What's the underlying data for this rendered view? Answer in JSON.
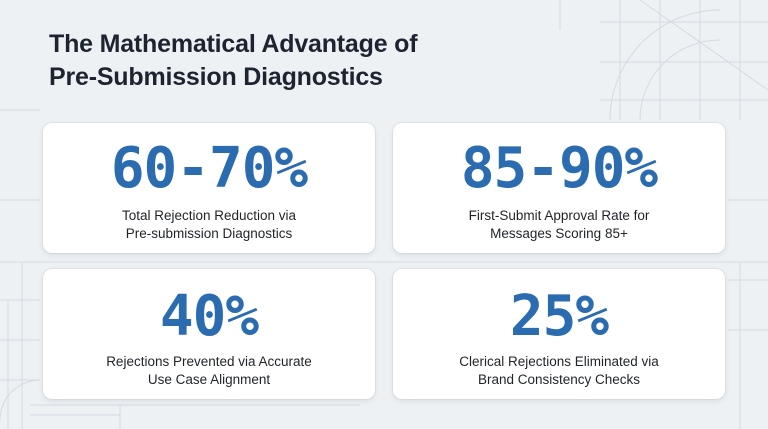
{
  "title": {
    "line1": "The Mathematical Advantage of",
    "line2": "Pre-Submission Diagnostics"
  },
  "cards": [
    {
      "value": "60-70%",
      "caption_line1": "Total Rejection Reduction via",
      "caption_line2": "Pre-submission Diagnostics"
    },
    {
      "value": "85-90%",
      "caption_line1": "First-Submit Approval Rate for",
      "caption_line2": "Messages Scoring 85+"
    },
    {
      "value": "40%",
      "caption_line1": "Rejections Prevented via Accurate",
      "caption_line2": "Use Case Alignment"
    },
    {
      "value": "25%",
      "caption_line1": "Clerical Rejections Eliminated via",
      "caption_line2": "Brand Consistency Checks"
    }
  ],
  "colors": {
    "background": "#eef1f4",
    "card": "#ffffff",
    "accent": "#2b6cb0",
    "title": "#1d2430",
    "caption": "#1f2329"
  }
}
